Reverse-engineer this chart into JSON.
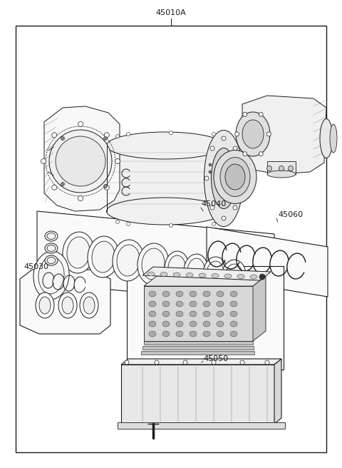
{
  "background_color": "#ffffff",
  "line_color": "#1a1a1a",
  "labels": {
    "main": "45010A",
    "sub1": "45040",
    "sub2": "45060",
    "sub3": "45030",
    "sub4": "45050"
  },
  "fig_width": 4.8,
  "fig_height": 6.56,
  "dpi": 100
}
